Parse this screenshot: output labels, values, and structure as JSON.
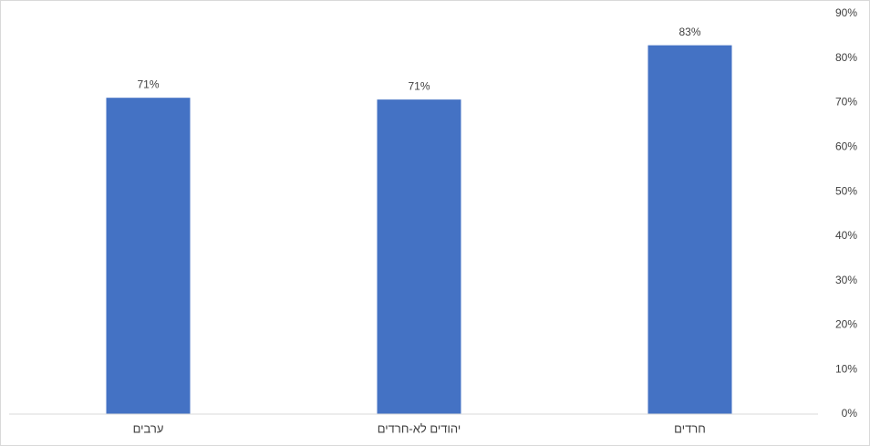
{
  "chart_data": {
    "type": "bar",
    "categories": [
      "ערבים",
      "יהודים לא-חרדים",
      "חרדים"
    ],
    "values": [
      71.1,
      70.7,
      82.9
    ],
    "value_labels": [
      "71%",
      "71%",
      "83%"
    ],
    "color": "#4472c4",
    "ylim": [
      0,
      90
    ],
    "yticks": [
      {
        "value": 0,
        "label": "0%"
      },
      {
        "value": 10,
        "label": "10%"
      },
      {
        "value": 20,
        "label": "20%"
      },
      {
        "value": 30,
        "label": "30%"
      },
      {
        "value": 40,
        "label": "40%"
      },
      {
        "value": 50,
        "label": "50%"
      },
      {
        "value": 60,
        "label": "60%"
      },
      {
        "value": 70,
        "label": "70%"
      },
      {
        "value": 80,
        "label": "80%"
      },
      {
        "value": 90,
        "label": "90%"
      }
    ],
    "y_axis_side": "right",
    "grid": false
  }
}
